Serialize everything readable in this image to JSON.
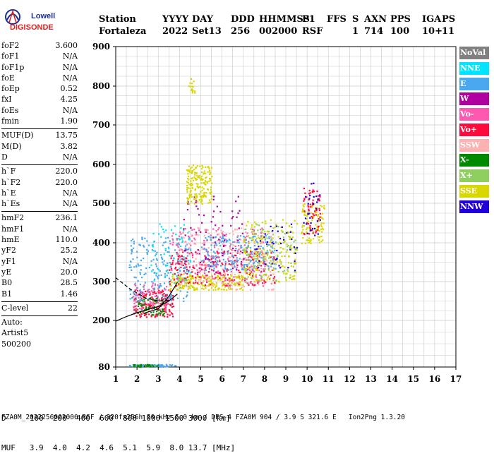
{
  "logo": {
    "line1": "Lowell",
    "line2": "DIGISONDE"
  },
  "header": {
    "labels": [
      "Station",
      "YYYY",
      "DAY",
      "DDD",
      "HHMMSS",
      "P1",
      "FFS",
      "S",
      "AXN",
      "PPS",
      "IGA",
      "PS"
    ],
    "values": [
      "Fortaleza",
      "2022",
      "Set13",
      "256",
      "002000",
      "RSF",
      "",
      "1",
      "714",
      "100",
      "10+",
      "11"
    ]
  },
  "params": {
    "group1": [
      {
        "name": "foF2",
        "value": "3.600"
      },
      {
        "name": "foF1",
        "value": "N/A"
      },
      {
        "name": "foF1p",
        "value": "N/A"
      },
      {
        "name": "foE",
        "value": "N/A"
      },
      {
        "name": "foEp",
        "value": "0.52"
      },
      {
        "name": "fxI",
        "value": "4.25"
      },
      {
        "name": "foEs",
        "value": "N/A"
      },
      {
        "name": "fmin",
        "value": "1.90"
      }
    ],
    "group2": [
      {
        "name": "MUF(D)",
        "value": "13.75"
      },
      {
        "name": "M(D)",
        "value": "3.82"
      },
      {
        "name": "D",
        "value": "N/A"
      }
    ],
    "group3": [
      {
        "name": "h`F",
        "value": "220.0"
      },
      {
        "name": "h`F2",
        "value": "220.0"
      },
      {
        "name": "h`E",
        "value": "N/A"
      },
      {
        "name": "h`Es",
        "value": "N/A"
      }
    ],
    "group4": [
      {
        "name": "hmF2",
        "value": "236.1"
      },
      {
        "name": "hmF1",
        "value": "N/A"
      },
      {
        "name": "hmE",
        "value": "110.0"
      },
      {
        "name": "yF2",
        "value": "25.2"
      },
      {
        "name": "yF1",
        "value": "N/A"
      },
      {
        "name": "yE",
        "value": "20.0"
      },
      {
        "name": "B0",
        "value": "28.5"
      },
      {
        "name": "B1",
        "value": "1.46"
      }
    ],
    "group5": [
      {
        "name": "C-level",
        "value": "22"
      }
    ],
    "auto": [
      "Auto:",
      "Artist5",
      "500200"
    ]
  },
  "legend": [
    {
      "label": "NoVal",
      "color": "#808080"
    },
    {
      "label": "NNE",
      "color": "#00e5ff"
    },
    {
      "label": "E",
      "color": "#4aa8f0"
    },
    {
      "label": "W",
      "color": "#b0009f"
    },
    {
      "label": "Vo-",
      "color": "#ff58b0"
    },
    {
      "label": "Vo+",
      "color": "#ff0a3c"
    },
    {
      "label": "SSW",
      "color": "#ffb0b0"
    },
    {
      "label": "X-",
      "color": "#008a00"
    },
    {
      "label": "X+",
      "color": "#8fcf60"
    },
    {
      "label": "SSE",
      "color": "#d8d800"
    },
    {
      "label": "NNW",
      "color": "#2000d8"
    }
  ],
  "footer": {
    "d_row": "D     100  200  400  600  800 1000 1500 3000 [km]",
    "muf_row": "MUF   3.9  4.0  4.2  4.6  5.1  5.9  8.0 13.7 [MHz]",
    "file_line": "FZA0M_2022256002000.RSF / 320fx256h 50 kHz 5.0 km / DPS-4 FZA0M 904 / 3.9 S 321.6 E   Ion2Png 1.3.20"
  },
  "chart_data": {
    "type": "scatter",
    "xlim": [
      1,
      17
    ],
    "ylim": [
      80,
      900
    ],
    "x_ticks": [
      "1",
      "2",
      "3",
      "4",
      "5",
      "6",
      "7",
      "8",
      "9",
      "10",
      "11",
      "12",
      "13",
      "14",
      "15",
      "16",
      "17"
    ],
    "y_ticks": [
      "80",
      "200",
      "300",
      "400",
      "500",
      "600",
      "700",
      "800",
      "900"
    ],
    "y_tick_values": [
      80,
      200,
      300,
      400,
      500,
      600,
      700,
      800,
      900
    ],
    "grid": true,
    "y_scale": "nonlinear",
    "clusters": [
      {
        "series": "E",
        "x": [
          1.6,
          3.8
        ],
        "y": [
          82,
          88
        ],
        "n": 60
      },
      {
        "series": "X-",
        "x": [
          1.7,
          3.0
        ],
        "y": [
          82,
          88
        ],
        "n": 30
      },
      {
        "series": "Vo+",
        "x": [
          1.8,
          3.7
        ],
        "y": [
          210,
          280
        ],
        "n": 160
      },
      {
        "series": "X-",
        "x": [
          1.9,
          3.3
        ],
        "y": [
          215,
          260
        ],
        "n": 80
      },
      {
        "series": "Vo-",
        "x": [
          1.8,
          3.5
        ],
        "y": [
          230,
          300
        ],
        "n": 90
      },
      {
        "series": "E",
        "x": [
          1.6,
          4.5
        ],
        "y": [
          250,
          420
        ],
        "n": 220
      },
      {
        "series": "NNE",
        "x": [
          2.5,
          4.5
        ],
        "y": [
          300,
          450
        ],
        "n": 70
      },
      {
        "series": "SSE",
        "x": [
          3.5,
          7.0
        ],
        "y": [
          280,
          320
        ],
        "n": 220
      },
      {
        "series": "Vo+",
        "x": [
          3.5,
          8.5
        ],
        "y": [
          290,
          380
        ],
        "n": 220
      },
      {
        "series": "Vo-",
        "x": [
          3.5,
          8.0
        ],
        "y": [
          290,
          440
        ],
        "n": 200
      },
      {
        "series": "SSW",
        "x": [
          4.0,
          8.5
        ],
        "y": [
          280,
          440
        ],
        "n": 180
      },
      {
        "series": "E",
        "x": [
          5.0,
          8.5
        ],
        "y": [
          330,
          420
        ],
        "n": 200
      },
      {
        "series": "W",
        "x": [
          4.0,
          7.0
        ],
        "y": [
          320,
          520
        ],
        "n": 80
      },
      {
        "series": "SSE",
        "x": [
          4.3,
          5.5
        ],
        "y": [
          500,
          600
        ],
        "n": 180
      },
      {
        "series": "SSE",
        "x": [
          7.0,
          9.5
        ],
        "y": [
          300,
          460
        ],
        "n": 180
      },
      {
        "series": "X+",
        "x": [
          7.0,
          9.5
        ],
        "y": [
          300,
          450
        ],
        "n": 90
      },
      {
        "series": "NNW",
        "x": [
          7.5,
          9.5
        ],
        "y": [
          330,
          450
        ],
        "n": 40
      },
      {
        "series": "SSE",
        "x": [
          9.7,
          10.8
        ],
        "y": [
          400,
          500
        ],
        "n": 100
      },
      {
        "series": "Vo+",
        "x": [
          9.8,
          10.6
        ],
        "y": [
          420,
          540
        ],
        "n": 60
      },
      {
        "series": "NNW",
        "x": [
          9.8,
          10.6
        ],
        "y": [
          420,
          560
        ],
        "n": 30
      },
      {
        "series": "SSE",
        "x": [
          4.4,
          4.7
        ],
        "y": [
          780,
          820
        ],
        "n": 15
      }
    ],
    "curves": [
      {
        "style": "solid",
        "x": [
          1.0,
          1.5,
          2.0,
          2.5,
          3.0,
          3.5,
          3.9
        ],
        "y": [
          198,
          210,
          220,
          228,
          236,
          250,
          268
        ]
      },
      {
        "style": "dashed",
        "x": [
          1.0,
          1.7,
          2.4,
          3.0,
          3.5
        ],
        "y": [
          310,
          280,
          258,
          250,
          252
        ]
      },
      {
        "style": "solid",
        "x": [
          2.3,
          3.0,
          3.5,
          3.9
        ],
        "y": [
          218,
          230,
          262,
          298
        ]
      }
    ]
  }
}
